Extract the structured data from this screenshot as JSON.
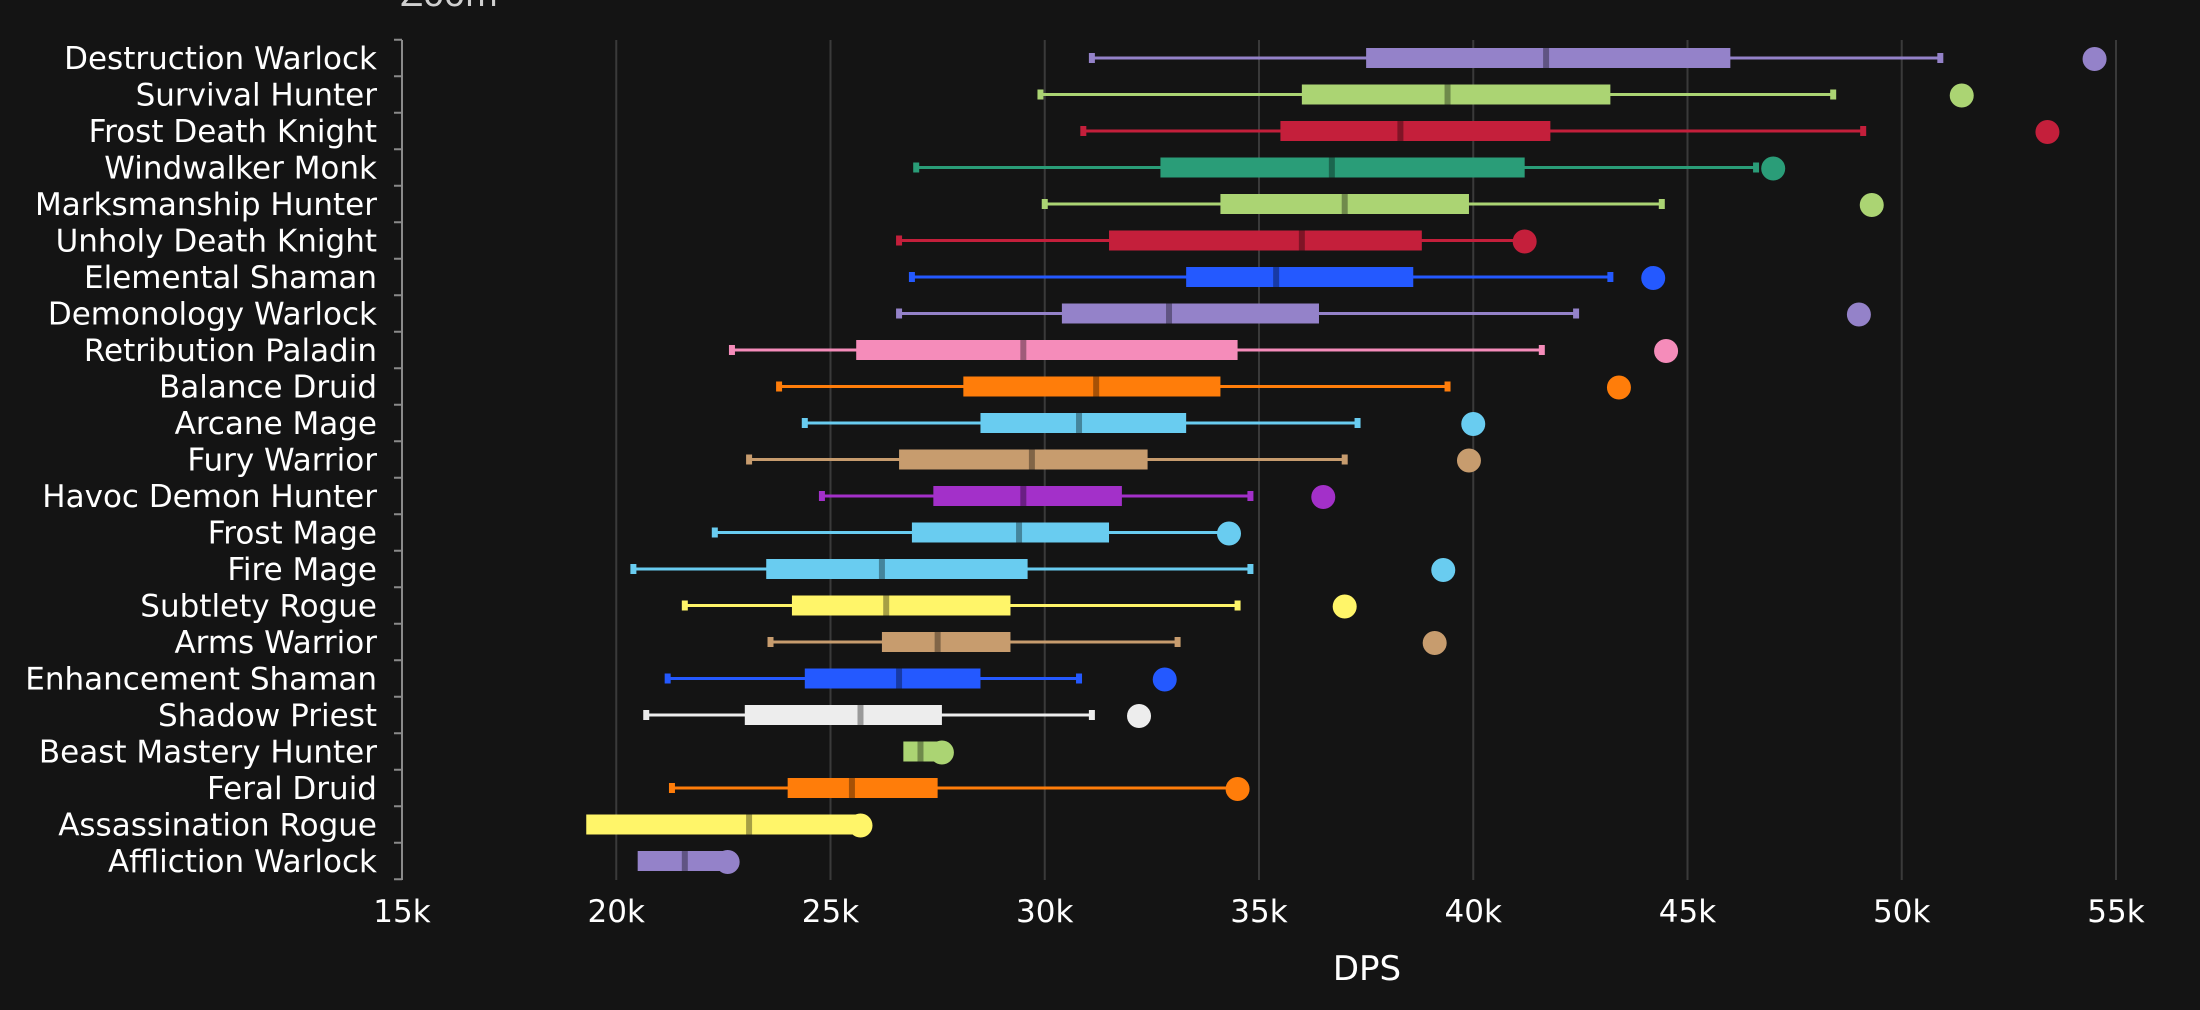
{
  "header": {
    "partial_label": "Zoom"
  },
  "chart_data": {
    "type": "boxplot",
    "xlabel": "DPS",
    "xlim": [
      15000,
      55000
    ],
    "x_ticks": [
      15000,
      20000,
      25000,
      30000,
      35000,
      40000,
      45000,
      50000,
      55000
    ],
    "x_tick_labels": [
      "15k",
      "20k",
      "25k",
      "30k",
      "35k",
      "40k",
      "45k",
      "50k",
      "55k"
    ],
    "grid": "vertical",
    "series": [
      {
        "name": "Destruction Warlock",
        "color": "#9482c9",
        "min": 31100,
        "q1": 37500,
        "median": 41700,
        "q3": 46000,
        "max": 50900,
        "top": 54500
      },
      {
        "name": "Survival Hunter",
        "color": "#abd473",
        "min": 29900,
        "q1": 36000,
        "median": 39400,
        "q3": 43200,
        "max": 48400,
        "top": 51400
      },
      {
        "name": "Frost Death Knight",
        "color": "#c41f3b",
        "min": 30900,
        "q1": 35500,
        "median": 38300,
        "q3": 41800,
        "max": 49100,
        "top": 53400
      },
      {
        "name": "Windwalker Monk",
        "color": "#2a9d78",
        "min": 27000,
        "q1": 32700,
        "median": 36700,
        "q3": 41200,
        "max": 46600,
        "top": 47000
      },
      {
        "name": "Marksmanship Hunter",
        "color": "#abd473",
        "min": 30000,
        "q1": 34100,
        "median": 37000,
        "q3": 39900,
        "max": 44400,
        "top": 49300
      },
      {
        "name": "Unholy Death Knight",
        "color": "#c41f3b",
        "min": 26600,
        "q1": 31500,
        "median": 36000,
        "q3": 38800,
        "max": 41200,
        "top": 41200
      },
      {
        "name": "Elemental Shaman",
        "color": "#2459ff",
        "min": 26900,
        "q1": 33300,
        "median": 35400,
        "q3": 38600,
        "max": 43200,
        "top": 44200
      },
      {
        "name": "Demonology Warlock",
        "color": "#9482c9",
        "min": 26600,
        "q1": 30400,
        "median": 32900,
        "q3": 36400,
        "max": 42400,
        "top": 49000
      },
      {
        "name": "Retribution Paladin",
        "color": "#f58cba",
        "min": 22700,
        "q1": 25600,
        "median": 29500,
        "q3": 34500,
        "max": 41600,
        "top": 44500
      },
      {
        "name": "Balance Druid",
        "color": "#ff7d0a",
        "min": 23800,
        "q1": 28100,
        "median": 31200,
        "q3": 34100,
        "max": 39400,
        "top": 43400
      },
      {
        "name": "Arcane Mage",
        "color": "#69ccf0",
        "min": 24400,
        "q1": 28500,
        "median": 30800,
        "q3": 33300,
        "max": 37300,
        "top": 40000
      },
      {
        "name": "Fury Warrior",
        "color": "#c79c6e",
        "min": 23100,
        "q1": 26600,
        "median": 29700,
        "q3": 32400,
        "max": 37000,
        "top": 39900
      },
      {
        "name": "Havoc Demon Hunter",
        "color": "#a330c9",
        "min": 24800,
        "q1": 27400,
        "median": 29500,
        "q3": 31800,
        "max": 34800,
        "top": 36500
      },
      {
        "name": "Frost Mage",
        "color": "#69ccf0",
        "min": 22300,
        "q1": 26900,
        "median": 29400,
        "q3": 31500,
        "max": 34300,
        "top": 34300
      },
      {
        "name": "Fire Mage",
        "color": "#69ccf0",
        "min": 20400,
        "q1": 23500,
        "median": 26200,
        "q3": 29600,
        "max": 34800,
        "top": 39300
      },
      {
        "name": "Subtlety Rogue",
        "color": "#fff569",
        "min": 21600,
        "q1": 24100,
        "median": 26300,
        "q3": 29200,
        "max": 34500,
        "top": 37000
      },
      {
        "name": "Arms Warrior",
        "color": "#c79c6e",
        "min": 23600,
        "q1": 26200,
        "median": 27500,
        "q3": 29200,
        "max": 33100,
        "top": 39100
      },
      {
        "name": "Enhancement Shaman",
        "color": "#2459ff",
        "min": 21200,
        "q1": 24400,
        "median": 26600,
        "q3": 28500,
        "max": 30800,
        "top": 32800
      },
      {
        "name": "Shadow Priest",
        "color": "#ededed",
        "min": 20700,
        "q1": 23000,
        "median": 25700,
        "q3": 27600,
        "max": 31100,
        "top": 32200
      },
      {
        "name": "Beast Mastery Hunter",
        "color": "#abd473",
        "min": 26700,
        "q1": 26700,
        "median": 27100,
        "q3": 27600,
        "max": 27600,
        "top": 27600
      },
      {
        "name": "Feral Druid",
        "color": "#ff7d0a",
        "min": 21300,
        "q1": 24000,
        "median": 25500,
        "q3": 27500,
        "max": 34500,
        "top": 34500
      },
      {
        "name": "Assassination Rogue",
        "color": "#fff569",
        "min": 19300,
        "q1": 19300,
        "median": 23100,
        "q3": 25700,
        "max": 25700,
        "top": 25700
      },
      {
        "name": "Affliction Warlock",
        "color": "#9482c9",
        "min": 20500,
        "q1": 20500,
        "median": 21600,
        "q3": 22600,
        "max": 22600,
        "top": 22600
      }
    ]
  }
}
